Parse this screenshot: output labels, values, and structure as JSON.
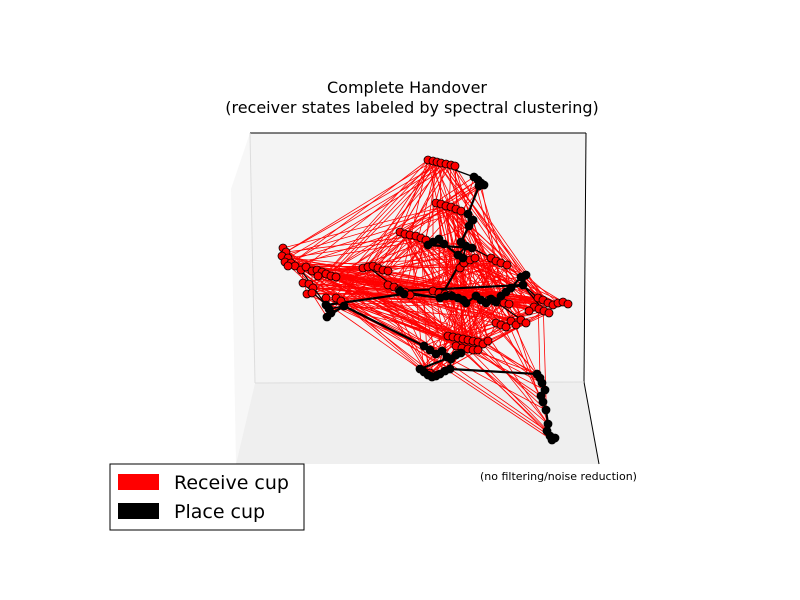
{
  "chart_data": {
    "type": "scatter",
    "projection": "3d",
    "title_line1": "Complete Handover",
    "title_line2": "(receiver states labeled by spectral clustering)",
    "annotation": "(no filtering/noise reduction)",
    "grid": false,
    "legend_position": "bottom-left",
    "colors": {
      "receive": "#ff0000",
      "place": "#000000",
      "pane": "#f2f2f2",
      "floor": "#ececec"
    },
    "series": [
      {
        "name": "Receive cup",
        "color": "#ff0000",
        "points": [
          [
            428,
            160
          ],
          [
            433,
            161
          ],
          [
            437,
            162
          ],
          [
            441,
            163
          ],
          [
            446,
            164
          ],
          [
            451,
            165
          ],
          [
            455,
            166
          ],
          [
            436,
            203
          ],
          [
            441,
            204
          ],
          [
            446,
            206
          ],
          [
            451,
            207
          ],
          [
            456,
            209
          ],
          [
            461,
            211
          ],
          [
            400,
            232
          ],
          [
            405,
            234
          ],
          [
            410,
            235
          ],
          [
            416,
            236
          ],
          [
            421,
            238
          ],
          [
            426,
            240
          ],
          [
            283,
            248
          ],
          [
            286,
            252
          ],
          [
            282,
            256
          ],
          [
            288,
            258
          ],
          [
            285,
            262
          ],
          [
            291,
            263
          ],
          [
            295,
            266
          ],
          [
            288,
            266
          ],
          [
            301,
            270
          ],
          [
            306,
            267
          ],
          [
            312,
            271
          ],
          [
            317,
            270
          ],
          [
            322,
            272
          ],
          [
            318,
            276
          ],
          [
            326,
            274
          ],
          [
            331,
            276
          ],
          [
            336,
            277
          ],
          [
            303,
            283
          ],
          [
            309,
            284
          ],
          [
            313,
            288
          ],
          [
            307,
            294
          ],
          [
            312,
            293
          ],
          [
            326,
            298
          ],
          [
            336,
            298
          ],
          [
            341,
            301
          ],
          [
            363,
            268
          ],
          [
            368,
            267
          ],
          [
            373,
            266
          ],
          [
            378,
            268
          ],
          [
            383,
            270
          ],
          [
            388,
            271
          ],
          [
            388,
            285
          ],
          [
            394,
            287
          ],
          [
            399,
            290
          ],
          [
            405,
            292
          ],
          [
            410,
            295
          ],
          [
            460,
            268
          ],
          [
            464,
            263
          ],
          [
            470,
            260
          ],
          [
            475,
            258
          ],
          [
            433,
            291
          ],
          [
            439,
            293
          ],
          [
            445,
            294
          ],
          [
            450,
            295
          ],
          [
            491,
            258
          ],
          [
            496,
            261
          ],
          [
            501,
            263
          ],
          [
            507,
            265
          ],
          [
            489,
            300
          ],
          [
            494,
            301
          ],
          [
            499,
            302
          ],
          [
            504,
            303
          ],
          [
            509,
            304
          ],
          [
            538,
            298
          ],
          [
            543,
            300
          ],
          [
            548,
            303
          ],
          [
            553,
            305
          ],
          [
            558,
            303
          ],
          [
            563,
            302
          ],
          [
            568,
            304
          ],
          [
            534,
            307
          ],
          [
            539,
            309
          ],
          [
            544,
            311
          ],
          [
            549,
            313
          ],
          [
            529,
            311
          ],
          [
            496,
            323
          ],
          [
            501,
            325
          ],
          [
            506,
            327
          ],
          [
            511,
            321
          ],
          [
            516,
            325
          ],
          [
            521,
            320
          ],
          [
            526,
            323
          ],
          [
            448,
            336
          ],
          [
            453,
            337
          ],
          [
            458,
            338
          ],
          [
            463,
            339
          ],
          [
            468,
            340
          ],
          [
            473,
            341
          ],
          [
            478,
            342
          ],
          [
            483,
            344
          ],
          [
            488,
            341
          ],
          [
            456,
            346
          ],
          [
            462,
            348
          ],
          [
            468,
            349
          ],
          [
            473,
            350
          ],
          [
            478,
            350
          ],
          [
            430,
            373
          ],
          [
            435,
            375
          ]
        ]
      },
      {
        "name": "Place cup",
        "color": "#000000",
        "points": [
          [
            474,
            177
          ],
          [
            478,
            180
          ],
          [
            481,
            183
          ],
          [
            484,
            185
          ],
          [
            479,
            186
          ],
          [
            468,
            214
          ],
          [
            473,
            220
          ],
          [
            469,
            226
          ],
          [
            461,
            242
          ],
          [
            466,
            246
          ],
          [
            472,
            248
          ],
          [
            428,
            245
          ],
          [
            433,
            242
          ],
          [
            439,
            239
          ],
          [
            444,
            244
          ],
          [
            458,
            255
          ],
          [
            463,
            258
          ],
          [
            440,
            298
          ],
          [
            446,
            296
          ],
          [
            452,
            296
          ],
          [
            458,
            298
          ],
          [
            463,
            300
          ],
          [
            466,
            303
          ],
          [
            476,
            296
          ],
          [
            481,
            300
          ],
          [
            486,
            303
          ],
          [
            491,
            299
          ],
          [
            496,
            302
          ],
          [
            501,
            296
          ],
          [
            506,
            292
          ],
          [
            511,
            288
          ],
          [
            521,
            277
          ],
          [
            526,
            275
          ],
          [
            523,
            285
          ],
          [
            400,
            291
          ],
          [
            404,
            294
          ],
          [
            326,
            305
          ],
          [
            329,
            309
          ],
          [
            331,
            313
          ],
          [
            327,
            317
          ],
          [
            344,
            306
          ],
          [
            424,
            346
          ],
          [
            430,
            350
          ],
          [
            436,
            354
          ],
          [
            442,
            351
          ],
          [
            447,
            357
          ],
          [
            451,
            359
          ],
          [
            456,
            355
          ],
          [
            461,
            353
          ],
          [
            420,
            369
          ],
          [
            424,
            372
          ],
          [
            428,
            375
          ],
          [
            432,
            377
          ],
          [
            436,
            376
          ],
          [
            440,
            374
          ],
          [
            445,
            371
          ],
          [
            450,
            369
          ],
          [
            537,
            374
          ],
          [
            540,
            378
          ],
          [
            542,
            383
          ],
          [
            545,
            390
          ],
          [
            541,
            396
          ],
          [
            543,
            402
          ],
          [
            546,
            410
          ],
          [
            548,
            424
          ],
          [
            547,
            431
          ],
          [
            550,
            436
          ],
          [
            552,
            440
          ],
          [
            555,
            438
          ]
        ]
      }
    ],
    "legend": [
      {
        "label": "Receive cup",
        "color": "#ff0000"
      },
      {
        "label": "Place cup",
        "color": "#000000"
      }
    ]
  }
}
